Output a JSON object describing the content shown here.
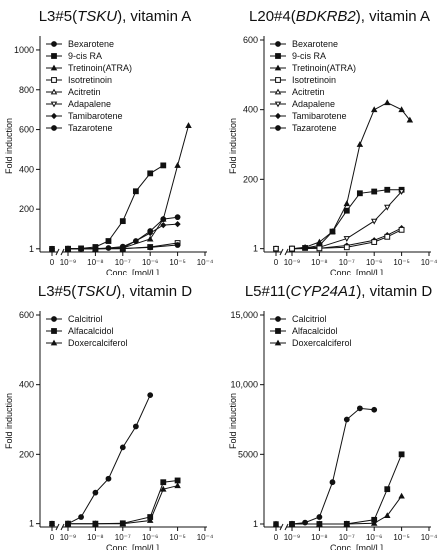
{
  "chart_data": [
    {
      "type": "line",
      "title_prefix": "L3#5(",
      "title_gene": "TSKU",
      "title_suffix": "), vitamin A",
      "xlabel": "Conc. [mol/L]",
      "ylabel": "Fold induction",
      "x_scale": "log",
      "x_tick_labels": [
        "0",
        "10⁻⁹",
        "10⁻⁸",
        "10⁻⁷",
        "10⁻⁶",
        "10⁻⁵",
        "10⁻⁴"
      ],
      "y_ticks": [
        1,
        200,
        400,
        600,
        800,
        1000
      ],
      "y_tick_labels": [
        "1",
        "200",
        "400",
        "600",
        "800",
        "1000"
      ],
      "ylim": [
        0,
        1050
      ],
      "legend_position": "top-left",
      "legend_labels": [
        "Bexarotene",
        "9-cis RA",
        "Tretinoin(ATRA)",
        "Isotretinoin",
        "Acitretin",
        "Adapalene",
        "Tamibarotene",
        "Tazarotene"
      ],
      "legend_markers": [
        "circle",
        "square",
        "triangle",
        "square-open",
        "triangle-open",
        "triangle-down-open",
        "diamond",
        "circle"
      ],
      "series": [
        {
          "marker": "circle",
          "x": [
            1e-09,
            3e-09,
            1e-08,
            3e-08,
            1e-07,
            3e-07,
            1e-06,
            3e-06,
            1e-05
          ],
          "y": [
            1,
            1,
            2,
            5,
            12,
            40,
            90,
            150,
            160
          ]
        },
        {
          "marker": "square",
          "x": [
            1e-09,
            3e-09,
            1e-08,
            3e-08,
            1e-07,
            3e-07,
            1e-06,
            3e-06
          ],
          "y": [
            1,
            3,
            10,
            40,
            140,
            290,
            380,
            420
          ]
        },
        {
          "marker": "triangle",
          "x": [
            1e-09,
            1e-08,
            1e-07,
            1e-06,
            3e-06,
            1e-05,
            2.5e-05
          ],
          "y": [
            1,
            1,
            5,
            50,
            150,
            420,
            620
          ]
        },
        {
          "marker": "diamond",
          "x": [
            1e-09,
            1e-08,
            1e-07,
            1e-06,
            3e-06,
            1e-05
          ],
          "y": [
            1,
            1,
            5,
            80,
            120,
            125
          ]
        },
        {
          "marker": "square-open",
          "x": [
            1e-09,
            1e-08,
            1e-07,
            1e-06,
            1e-05
          ],
          "y": [
            1,
            1,
            2,
            10,
            30
          ]
        },
        {
          "marker": "circle",
          "x": [
            1e-09,
            1e-08,
            1e-07,
            1e-06,
            1e-05
          ],
          "y": [
            1,
            1,
            2,
            8,
            20
          ]
        }
      ]
    },
    {
      "type": "line",
      "title_prefix": "L20#4(",
      "title_gene": "BDKRB2",
      "title_suffix": "), vitamin A",
      "xlabel": "Conc. [mol/L]",
      "ylabel": "Fold induction",
      "x_scale": "log",
      "x_tick_labels": [
        "0",
        "10⁻⁹",
        "10⁻⁸",
        "10⁻⁷",
        "10⁻⁶",
        "10⁻⁵",
        "10⁻⁴"
      ],
      "y_ticks": [
        1,
        200,
        400,
        600
      ],
      "y_tick_labels": [
        "1",
        "200",
        "400",
        "600"
      ],
      "ylim": [
        0,
        600
      ],
      "legend_position": "top-left",
      "legend_labels": [
        "Bexarotene",
        "9-cis RA",
        "Tretinoin(ATRA)",
        "Isotretinoin",
        "Acitretin",
        "Adapalene",
        "Tamibarotene",
        "Tazarotene"
      ],
      "legend_markers": [
        "circle",
        "square",
        "triangle",
        "square-open",
        "triangle-open",
        "triangle-down-open",
        "diamond",
        "circle"
      ],
      "series": [
        {
          "marker": "triangle",
          "x": [
            1e-09,
            3e-09,
            1e-08,
            3e-08,
            1e-07,
            3e-07,
            1e-06,
            3e-06,
            1e-05,
            2e-05
          ],
          "y": [
            1,
            5,
            20,
            50,
            130,
            300,
            400,
            420,
            400,
            370
          ]
        },
        {
          "marker": "square",
          "x": [
            1e-09,
            3e-09,
            1e-08,
            3e-08,
            1e-07,
            3e-07,
            1e-06,
            3e-06,
            1e-05
          ],
          "y": [
            1,
            3,
            10,
            50,
            110,
            160,
            165,
            170,
            170
          ]
        },
        {
          "marker": "triangle-down-open",
          "x": [
            1e-09,
            1e-08,
            1e-07,
            1e-06,
            3e-06,
            1e-05
          ],
          "y": [
            1,
            5,
            30,
            80,
            120,
            165
          ]
        },
        {
          "marker": "diamond",
          "x": [
            1e-09,
            1e-08,
            1e-07,
            1e-06,
            3e-06,
            1e-05
          ],
          "y": [
            1,
            2,
            10,
            25,
            40,
            60
          ]
        },
        {
          "marker": "square-open",
          "x": [
            1e-09,
            1e-08,
            1e-07,
            1e-06,
            3e-06,
            1e-05
          ],
          "y": [
            1,
            2,
            5,
            20,
            35,
            55
          ]
        }
      ]
    },
    {
      "type": "line",
      "title_prefix": "L3#5(",
      "title_gene": "TSKU",
      "title_suffix": "), vitamin D",
      "xlabel": "Conc. [mol/L]",
      "ylabel": "Fold induction",
      "x_scale": "log",
      "x_tick_labels": [
        "0",
        "10⁻⁹",
        "10⁻⁸",
        "10⁻⁷",
        "10⁻⁶",
        "10⁻⁵",
        "10⁻⁴"
      ],
      "y_ticks": [
        1,
        200,
        400,
        600
      ],
      "y_tick_labels": [
        "1",
        "200",
        "400",
        "600"
      ],
      "ylim": [
        0,
        600
      ],
      "legend_position": "top-left",
      "legend_labels": [
        "Calcitriol",
        "Alfacalcidol",
        "Doxercalciferol"
      ],
      "legend_markers": [
        "circle",
        "square",
        "triangle"
      ],
      "series": [
        {
          "marker": "circle",
          "x": [
            1e-09,
            3e-09,
            1e-08,
            3e-08,
            1e-07,
            3e-07,
            1e-06
          ],
          "y": [
            1,
            20,
            90,
            130,
            220,
            280,
            370
          ]
        },
        {
          "marker": "square",
          "x": [
            1e-09,
            1e-08,
            1e-07,
            1e-06,
            3e-06,
            1e-05
          ],
          "y": [
            1,
            1,
            2,
            20,
            120,
            125
          ]
        },
        {
          "marker": "triangle",
          "x": [
            1e-09,
            1e-08,
            1e-07,
            1e-06,
            3e-06,
            1e-05
          ],
          "y": [
            1,
            1,
            1,
            10,
            100,
            110
          ]
        }
      ]
    },
    {
      "type": "line",
      "title_prefix": "L5#11(",
      "title_gene": "CYP24A1",
      "title_suffix": "), vitamin D",
      "xlabel": "Conc. [mol/L]",
      "ylabel": "Fold induction",
      "x_scale": "log",
      "x_tick_labels": [
        "0",
        "10⁻⁹",
        "10⁻⁸",
        "10⁻⁷",
        "10⁻⁶",
        "10⁻⁵",
        "10⁻⁴"
      ],
      "y_ticks": [
        1,
        5000,
        10000,
        15000
      ],
      "y_tick_labels": [
        "1",
        "5000",
        "10,000",
        "15,000"
      ],
      "ylim": [
        0,
        15000
      ],
      "legend_position": "top-left",
      "legend_labels": [
        "Calcitriol",
        "Alfacalcidol",
        "Doxercalciferol"
      ],
      "legend_markers": [
        "circle",
        "square",
        "triangle"
      ],
      "series": [
        {
          "marker": "circle",
          "x": [
            1e-09,
            3e-09,
            1e-08,
            3e-08,
            1e-07,
            3e-07,
            1e-06
          ],
          "y": [
            1,
            100,
            500,
            3000,
            7500,
            8300,
            8200
          ]
        },
        {
          "marker": "square",
          "x": [
            1e-09,
            1e-08,
            1e-07,
            1e-06,
            3e-06,
            1e-05
          ],
          "y": [
            1,
            1,
            10,
            300,
            2500,
            5000
          ]
        },
        {
          "marker": "triangle",
          "x": [
            1e-09,
            1e-08,
            1e-07,
            1e-06,
            3e-06,
            1e-05
          ],
          "y": [
            1,
            1,
            1,
            50,
            600,
            2000
          ]
        }
      ]
    }
  ]
}
